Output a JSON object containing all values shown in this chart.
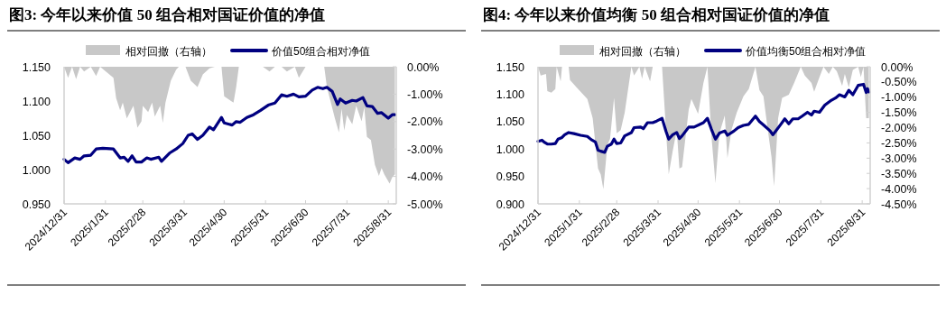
{
  "chart_data": [
    {
      "type": "line",
      "title": "图3: 今年以来价值 50 组合相对国证价值的净值",
      "legend": "top",
      "grid": false,
      "xlim": [
        "2024-12-31",
        "2025-09-06"
      ],
      "xticks": [
        {
          "value": "2024-12-31",
          "label": "2024/12/31"
        },
        {
          "value": "2025-01-31",
          "label": "2025/1/31"
        },
        {
          "value": "2025-02-28",
          "label": "2025/2/28"
        },
        {
          "value": "2025-03-31",
          "label": "2025/3/31"
        },
        {
          "value": "2025-04-30",
          "label": "2025/4/30"
        },
        {
          "value": "2025-05-31",
          "label": "2025/5/31"
        },
        {
          "value": "2025-06-30",
          "label": "2025/6/30"
        },
        {
          "value": "2025-07-31",
          "label": "2025/7/31"
        },
        {
          "value": "2025-08-31",
          "label": "2025/8/31"
        }
      ],
      "ylim": [
        0.95,
        1.15
      ],
      "yticks": [
        {
          "value": 0.95,
          "label": "0.950"
        },
        {
          "value": 1.0,
          "label": "1.000"
        },
        {
          "value": 1.05,
          "label": "1.050"
        },
        {
          "value": 1.1,
          "label": "1.100"
        },
        {
          "value": 1.15,
          "label": "1.150"
        }
      ],
      "y2lim": [
        -5,
        0
      ],
      "y2ticks": [
        {
          "value": -5,
          "label": "-5.00%"
        },
        {
          "value": -4,
          "label": "-4.00%"
        },
        {
          "value": -3,
          "label": "-3.00%"
        },
        {
          "value": -2,
          "label": "-2.00%"
        },
        {
          "value": -1,
          "label": "-1.00%"
        },
        {
          "value": 0,
          "label": "0.00%"
        }
      ],
      "series": [
        {
          "name": "相对回撤（右轴）",
          "type": "area",
          "axis": "y2",
          "color": "#c8c8c8",
          "x": [
            "2024-12-31",
            "2025-01-03",
            "2025-01-06",
            "2025-01-09",
            "2025-01-12",
            "2025-01-15",
            "2025-01-20",
            "2025-01-24",
            "2025-01-27",
            "2025-02-06",
            "2025-02-08",
            "2025-02-11",
            "2025-02-13",
            "2025-02-16",
            "2025-02-21",
            "2025-02-24",
            "2025-02-27",
            "2025-02-28",
            "2025-03-04",
            "2025-03-07",
            "2025-03-09",
            "2025-03-13",
            "2025-03-15",
            "2025-03-17",
            "2025-03-21",
            "2025-03-25",
            "2025-03-27",
            "2025-04-01",
            "2025-04-05",
            "2025-04-10",
            "2025-04-14",
            "2025-04-19",
            "2025-04-23",
            "2025-04-28",
            "2025-04-30",
            "2025-05-07",
            "2025-05-09",
            "2025-05-11",
            "2025-05-22",
            "2025-05-29",
            "2025-06-03",
            "2025-06-07",
            "2025-06-12",
            "2025-06-16",
            "2025-06-22",
            "2025-06-25",
            "2025-06-30",
            "2025-07-14",
            "2025-07-16",
            "2025-07-22",
            "2025-07-25",
            "2025-07-27",
            "2025-07-29",
            "2025-07-31",
            "2025-08-04",
            "2025-08-07",
            "2025-08-11",
            "2025-08-13",
            "2025-08-15",
            "2025-08-18",
            "2025-08-21",
            "2025-08-24",
            "2025-08-26",
            "2025-08-28",
            "2025-09-01",
            "2025-09-03",
            "2025-09-05"
          ],
          "values": [
            0,
            -0.4,
            0,
            -0.45,
            0,
            -0.17,
            0,
            -0.34,
            0,
            -0.4,
            -1.14,
            -1.59,
            -1.31,
            -1.88,
            -1.42,
            -2.22,
            -1.99,
            -1.42,
            -1.65,
            -1.31,
            -1.82,
            -1.42,
            -2.05,
            -1.31,
            -0.51,
            -0.11,
            0,
            0,
            -0.51,
            -0.74,
            -0.28,
            -0.06,
            0,
            0,
            -1.08,
            -1.31,
            -0.74,
            0,
            0,
            0,
            -0.17,
            0,
            0,
            -0.17,
            0,
            -0.4,
            0,
            0,
            -0.74,
            -1.88,
            -2.39,
            -1.53,
            -2.33,
            -1.76,
            -2.1,
            -1.42,
            -1.99,
            -1.48,
            -2.56,
            -2.67,
            -3.58,
            -3.98,
            -3.69,
            -3.92,
            -4.26,
            -4.03,
            -3.92
          ]
        },
        {
          "name": "价值50组合相对净值",
          "type": "line",
          "color": "#000080",
          "x": [
            "2024-12-31",
            "2025-01-03",
            "2025-01-08",
            "2025-01-12",
            "2025-01-15",
            "2025-01-20",
            "2025-01-24",
            "2025-01-29",
            "2025-02-06",
            "2025-02-11",
            "2025-02-14",
            "2025-02-17",
            "2025-02-20",
            "2025-02-23",
            "2025-02-27",
            "2025-03-03",
            "2025-03-06",
            "2025-03-12",
            "2025-03-14",
            "2025-03-20",
            "2025-03-25",
            "2025-03-30",
            "2025-04-03",
            "2025-04-06",
            "2025-04-10",
            "2025-04-14",
            "2025-04-19",
            "2025-04-22",
            "2025-04-28",
            "2025-04-30",
            "2025-05-06",
            "2025-05-09",
            "2025-05-12",
            "2025-05-17",
            "2025-05-22",
            "2025-05-27",
            "2025-06-02",
            "2025-06-07",
            "2025-06-12",
            "2025-06-16",
            "2025-06-21",
            "2025-06-25",
            "2025-06-30",
            "2025-07-05",
            "2025-07-09",
            "2025-07-13",
            "2025-07-16",
            "2025-07-20",
            "2025-07-24",
            "2025-07-26",
            "2025-07-30",
            "2025-08-04",
            "2025-08-07",
            "2025-08-12",
            "2025-08-15",
            "2025-08-19",
            "2025-08-23",
            "2025-08-26",
            "2025-08-31",
            "2025-09-03",
            "2025-09-05"
          ],
          "values": [
            1.015,
            1.01,
            1.017,
            1.015,
            1.02,
            1.021,
            1.03,
            1.031,
            1.03,
            1.017,
            1.018,
            1.012,
            1.02,
            1.011,
            1.011,
            1.017,
            1.015,
            1.018,
            1.012,
            1.024,
            1.03,
            1.038,
            1.05,
            1.052,
            1.044,
            1.05,
            1.062,
            1.058,
            1.076,
            1.068,
            1.065,
            1.07,
            1.069,
            1.076,
            1.08,
            1.086,
            1.094,
            1.097,
            1.109,
            1.107,
            1.11,
            1.106,
            1.107,
            1.116,
            1.12,
            1.118,
            1.12,
            1.114,
            1.095,
            1.103,
            1.097,
            1.101,
            1.1,
            1.105,
            1.093,
            1.092,
            1.082,
            1.083,
            1.075,
            1.08,
            1.08
          ]
        }
      ]
    },
    {
      "type": "line",
      "title": "图4: 今年以来价值均衡 50 组合相对国证价值的净值",
      "legend": "top",
      "grid": false,
      "xlim": [
        "2024-12-31",
        "2025-09-06"
      ],
      "xticks": [
        {
          "value": "2024-12-31",
          "label": "2024/12/31"
        },
        {
          "value": "2025-01-31",
          "label": "2025/1/31"
        },
        {
          "value": "2025-02-28",
          "label": "2025/2/28"
        },
        {
          "value": "2025-03-31",
          "label": "2025/3/31"
        },
        {
          "value": "2025-04-30",
          "label": "2025/4/30"
        },
        {
          "value": "2025-05-31",
          "label": "2025/5/31"
        },
        {
          "value": "2025-06-30",
          "label": "2025/6/30"
        },
        {
          "value": "2025-07-31",
          "label": "2025/7/31"
        },
        {
          "value": "2025-08-31",
          "label": "2025/8/31"
        }
      ],
      "ylim": [
        0.9,
        1.15
      ],
      "yticks": [
        {
          "value": 0.9,
          "label": "0.900"
        },
        {
          "value": 0.95,
          "label": "0.950"
        },
        {
          "value": 1.0,
          "label": "1.000"
        },
        {
          "value": 1.05,
          "label": "1.050"
        },
        {
          "value": 1.1,
          "label": "1.100"
        },
        {
          "value": 1.15,
          "label": "1.150"
        }
      ],
      "y2lim": [
        -4.5,
        0
      ],
      "y2ticks": [
        {
          "value": -4.5,
          "label": "-4.50%"
        },
        {
          "value": -4,
          "label": "-4.00%"
        },
        {
          "value": -3.5,
          "label": "-3.50%"
        },
        {
          "value": -3,
          "label": "-3.00%"
        },
        {
          "value": -2.5,
          "label": "-2.50%"
        },
        {
          "value": -2,
          "label": "-2.00%"
        },
        {
          "value": -1.5,
          "label": "-1.50%"
        },
        {
          "value": -1,
          "label": "-1.00%"
        },
        {
          "value": -0.5,
          "label": "-0.50%"
        },
        {
          "value": 0,
          "label": "0.00%"
        }
      ],
      "series": [
        {
          "name": "相对回撤（右轴）",
          "type": "area",
          "axis": "y2",
          "color": "#c8c8c8",
          "x": [
            "2024-12-31",
            "2025-01-02",
            "2025-01-06",
            "2025-01-07",
            "2025-01-10",
            "2025-01-13",
            "2025-01-14",
            "2025-01-17",
            "2025-01-18",
            "2025-01-23",
            "2025-01-24",
            "2025-01-29",
            "2025-02-06",
            "2025-02-10",
            "2025-02-14",
            "2025-02-16",
            "2025-02-18",
            "2025-02-21",
            "2025-02-23",
            "2025-02-26",
            "2025-02-28",
            "2025-03-03",
            "2025-03-06",
            "2025-03-11",
            "2025-03-13",
            "2025-03-17",
            "2025-03-19",
            "2025-03-21",
            "2025-03-25",
            "2025-03-27",
            "2025-04-03",
            "2025-04-08",
            "2025-04-11",
            "2025-04-14",
            "2025-04-16",
            "2025-04-18",
            "2025-04-23",
            "2025-04-25",
            "2025-04-30",
            "2025-05-04",
            "2025-05-07",
            "2025-05-10",
            "2025-05-13",
            "2025-05-16",
            "2025-05-20",
            "2025-05-22",
            "2025-05-25",
            "2025-05-29",
            "2025-06-03",
            "2025-06-07",
            "2025-06-12",
            "2025-06-15",
            "2025-06-18",
            "2025-06-21",
            "2025-06-24",
            "2025-06-26",
            "2025-06-29",
            "2025-07-02",
            "2025-07-07",
            "2025-07-11",
            "2025-07-16",
            "2025-07-19",
            "2025-07-24",
            "2025-07-26",
            "2025-07-30",
            "2025-08-02",
            "2025-08-06",
            "2025-08-09",
            "2025-08-12",
            "2025-08-16",
            "2025-08-18",
            "2025-08-21",
            "2025-08-24",
            "2025-08-28",
            "2025-08-30",
            "2025-09-01",
            "2025-09-03",
            "2025-09-05"
          ],
          "values": [
            0,
            -0.29,
            -0.24,
            -0.8,
            -0.85,
            -0.73,
            0,
            -0.48,
            0,
            0,
            -0.44,
            -0.68,
            -1.06,
            -1.69,
            -3.34,
            -3.53,
            -4.02,
            -2.57,
            -2.37,
            -1.02,
            -2.18,
            -2.08,
            -1.5,
            0,
            -0.29,
            0,
            -0.39,
            0,
            -0.48,
            0,
            0,
            -3.53,
            -2.76,
            -2.08,
            -3.34,
            -3.29,
            -1.4,
            -1.06,
            -1.55,
            -0.53,
            0,
            -2.27,
            -3.82,
            -2.18,
            -1.6,
            -3.0,
            -2.08,
            -1.5,
            -0.97,
            -0.73,
            0,
            -0.77,
            -0.97,
            -1.98,
            -2.95,
            -3.92,
            -1.69,
            -1.02,
            -0.92,
            -0.53,
            0,
            -0.29,
            -0.53,
            -0.82,
            -0.34,
            0,
            -0.24,
            0,
            -0.15,
            -0.63,
            -0.24,
            -0.68,
            -0.1,
            0,
            -0.34,
            0,
            -1.69,
            -1.69
          ]
        },
        {
          "name": "价值均衡50组合相对净值",
          "type": "line",
          "color": "#000080",
          "x": [
            "2024-12-31",
            "2025-01-03",
            "2025-01-05",
            "2025-01-07",
            "2025-01-10",
            "2025-01-13",
            "2025-01-15",
            "2025-01-18",
            "2025-01-20",
            "2025-01-23",
            "2025-01-27",
            "2025-02-01",
            "2025-02-06",
            "2025-02-09",
            "2025-02-12",
            "2025-02-14",
            "2025-02-16",
            "2025-02-19",
            "2025-02-21",
            "2025-02-24",
            "2025-02-26",
            "2025-02-28",
            "2025-03-03",
            "2025-03-06",
            "2025-03-11",
            "2025-03-13",
            "2025-03-18",
            "2025-03-20",
            "2025-03-23",
            "2025-03-27",
            "2025-03-30",
            "2025-04-03",
            "2025-04-06",
            "2025-04-08",
            "2025-04-11",
            "2025-04-14",
            "2025-04-16",
            "2025-04-18",
            "2025-04-23",
            "2025-04-27",
            "2025-05-04",
            "2025-05-07",
            "2025-05-10",
            "2025-05-13",
            "2025-05-16",
            "2025-05-20",
            "2025-05-22",
            "2025-05-27",
            "2025-05-30",
            "2025-06-03",
            "2025-06-07",
            "2025-06-12",
            "2025-06-15",
            "2025-06-18",
            "2025-06-23",
            "2025-06-25",
            "2025-06-27",
            "2025-07-01",
            "2025-07-04",
            "2025-07-07",
            "2025-07-10",
            "2025-07-14",
            "2025-07-17",
            "2025-07-21",
            "2025-07-24",
            "2025-07-26",
            "2025-07-30",
            "2025-08-03",
            "2025-08-08",
            "2025-08-11",
            "2025-08-14",
            "2025-08-18",
            "2025-08-21",
            "2025-08-24",
            "2025-08-28",
            "2025-09-01",
            "2025-09-03",
            "2025-09-04",
            "2025-09-05"
          ],
          "values": [
            1.014,
            1.016,
            1.012,
            1.009,
            1.009,
            1.01,
            1.018,
            1.021,
            1.026,
            1.03,
            1.028,
            1.025,
            1.023,
            1.017,
            1.013,
            0.998,
            0.996,
            0.994,
            1.005,
            1.009,
            1.018,
            1.01,
            1.011,
            1.024,
            1.03,
            1.039,
            1.04,
            1.037,
            1.048,
            1.048,
            1.051,
            1.056,
            1.032,
            1.018,
            1.026,
            1.03,
            1.019,
            1.024,
            1.04,
            1.04,
            1.048,
            1.056,
            1.036,
            1.018,
            1.029,
            1.033,
            1.025,
            1.033,
            1.039,
            1.043,
            1.045,
            1.06,
            1.05,
            1.044,
            1.033,
            1.026,
            1.032,
            1.045,
            1.055,
            1.046,
            1.055,
            1.055,
            1.06,
            1.067,
            1.062,
            1.069,
            1.067,
            1.08,
            1.089,
            1.093,
            1.099,
            1.095,
            1.107,
            1.099,
            1.116,
            1.118,
            1.103,
            1.11,
            1.104
          ]
        }
      ]
    }
  ]
}
